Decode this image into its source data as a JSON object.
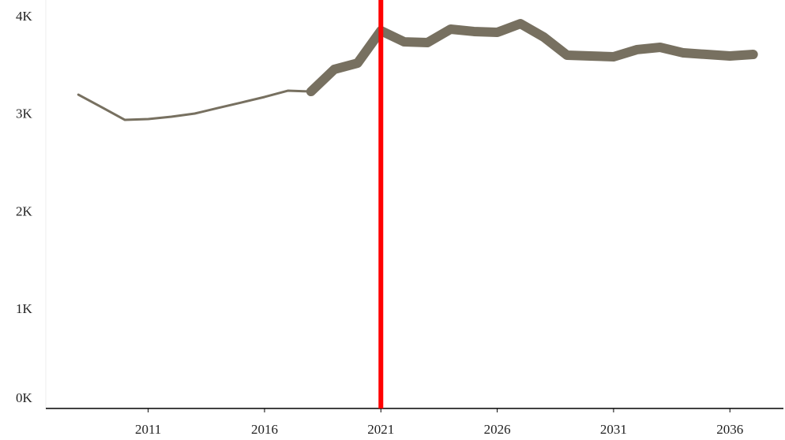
{
  "chart_data": {
    "type": "line",
    "x": [
      2008,
      2009,
      2010,
      2011,
      2012,
      2013,
      2014,
      2015,
      2016,
      2017,
      2018,
      2019,
      2020,
      2021,
      2022,
      2023,
      2024,
      2025,
      2026,
      2027,
      2028,
      2029,
      2030,
      2031,
      2032,
      2033,
      2034,
      2035,
      2036,
      2037
    ],
    "series": [
      {
        "color": "#777060",
        "values": [
          3208,
          3079,
          2949,
          2958,
          2982,
          3014,
          3071,
          3127,
          3184,
          3248,
          3240,
          3467,
          3531,
          3863,
          3749,
          3741,
          3879,
          3855,
          3846,
          3935,
          3798,
          3612,
          3604,
          3596,
          3669,
          3693,
          3636,
          3620,
          3604,
          3620
        ]
      }
    ],
    "xlim": [
      2006.6,
      2038.3
    ],
    "xticks": [
      2011,
      2016,
      2021,
      2026,
      2031,
      2036
    ],
    "ylim": [
      0,
      4000
    ],
    "yticks": [
      {
        "value": 0,
        "label": "0K"
      },
      {
        "value": 1000,
        "label": "1K"
      },
      {
        "value": 2000,
        "label": "2K"
      },
      {
        "value": 3000,
        "label": "3K"
      },
      {
        "value": 4000,
        "label": "4K"
      }
    ],
    "reference_line": {
      "x": 2021,
      "color": "#ff0000"
    }
  }
}
